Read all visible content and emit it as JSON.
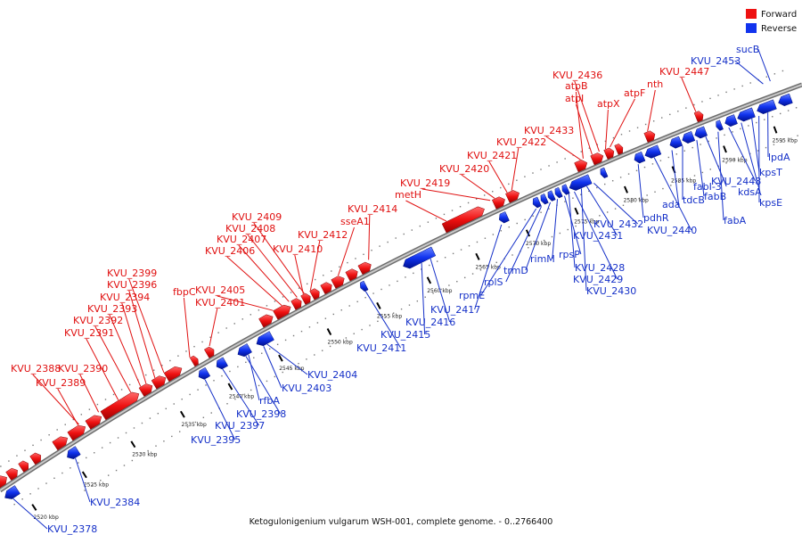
{
  "caption": "Ketogulonigenium vulgarum WSH-001, complete genome. - 0..2766400",
  "legend": [
    {
      "label": "Forward",
      "color": "#ee1111"
    },
    {
      "label": "Reverse",
      "color": "#1133ee"
    }
  ],
  "colors": {
    "forward": "#ee1111",
    "reverse": "#1133ee",
    "axis": "#8a8a8a"
  },
  "ticks": [
    "2520 kbp",
    "2525 kbp",
    "2530 kbp",
    "2535 kbp",
    "2540 kbp",
    "2545 kbp",
    "2550 kbp",
    "2555 kbp",
    "2560 kbp",
    "2565 kbp",
    "2570 kbp",
    "2575 kbp",
    "2580 kbp",
    "2585 kbp",
    "2590 kbp",
    "2595 kbp"
  ],
  "forward_genes": [
    "KVU_2388",
    "KVU_2389",
    "KVU_2390",
    "KVU_2391",
    "KVU_2392",
    "KVU_2393",
    "KVU_2394",
    "KVU_2396",
    "KVU_2399",
    "fbpC",
    "KVU_2401",
    "KVU_2405",
    "KVU_2406",
    "KVU_2407",
    "KVU_2408",
    "KVU_2409",
    "KVU_2410",
    "KVU_2412",
    "sseA1",
    "KVU_2414",
    "metH",
    "KVU_2419",
    "KVU_2420",
    "KVU_2421",
    "KVU_2422",
    "KVU_2433",
    "atpB",
    "atpI",
    "KVU_2436",
    "atpX",
    "atpF",
    "nth",
    "KVU_2447"
  ],
  "reverse_genes": [
    "KVU_2378",
    "KVU_2384",
    "KVU_2395",
    "KVU_2397",
    "KVU_2398",
    "rfbA",
    "KVU_2403",
    "KVU_2404",
    "KVU_2411",
    "KVU_2415",
    "KVU_2416",
    "KVU_2417",
    "rpmE",
    "rplS",
    "trmD",
    "rimM",
    "rpsP",
    "KVU_2428",
    "KVU_2429",
    "KVU_2430",
    "KVU_2431",
    "KVU_2432",
    "pdhR",
    "KVU_2440",
    "ada",
    "tdcB",
    "fabB",
    "fabI-3",
    "fabA",
    "KVU_2448",
    "kdsA",
    "kpsT",
    "kpsE",
    "lpdA",
    "KVU_2453",
    "sucB"
  ]
}
